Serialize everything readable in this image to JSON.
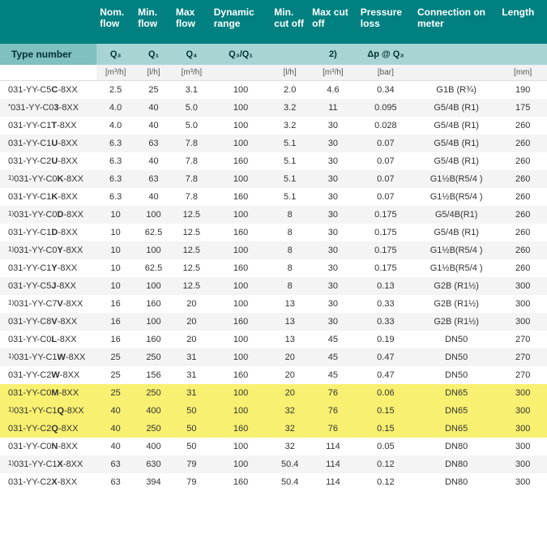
{
  "table": {
    "headers": [
      "",
      "Nom. flow",
      "Min. flow",
      "Max flow",
      "Dynamic range",
      "Min. cut off",
      "Max cut off",
      "Pressure loss",
      "Connection on meter",
      "Length"
    ],
    "type_label": "Type number",
    "symbols": [
      "Q₃",
      "Q₁",
      "Q₄",
      "Q₃/Q₁",
      "",
      "2)",
      "Δp @ Q₃",
      "",
      ""
    ],
    "units": [
      "[m³/h]",
      "[l/h]",
      "[m³/h]",
      "",
      "[l/h]",
      "[m³/h]",
      "[bar]",
      "",
      "[mm]"
    ],
    "rows": [
      {
        "pre": "",
        "type": "031-YY-C5C-8XX",
        "v": [
          "2.5",
          "25",
          "3.1",
          "100",
          "2.0",
          "4.6",
          "0.34",
          "G1B (R¾)",
          "190"
        ],
        "hl": false
      },
      {
        "pre": "*",
        "type": "031-YY-C03-8XX",
        "v": [
          "4.0",
          "40",
          "5.0",
          "100",
          "3.2",
          "11",
          "0.095",
          "G5/4B (R1)",
          "175"
        ],
        "hl": false
      },
      {
        "pre": "",
        "type": "031-YY-C1T-8XX",
        "v": [
          "4.0",
          "40",
          "5.0",
          "100",
          "3.2",
          "30",
          "0.028",
          "G5/4B (R1)",
          "260"
        ],
        "hl": false
      },
      {
        "pre": "",
        "type": "031-YY-C1U-8XX",
        "v": [
          "6.3",
          "63",
          "7.8",
          "100",
          "5.1",
          "30",
          "0.07",
          "G5/4B (R1)",
          "260"
        ],
        "hl": false
      },
      {
        "pre": "",
        "type": "031-YY-C2U-8XX",
        "v": [
          "6.3",
          "40",
          "7.8",
          "160",
          "5.1",
          "30",
          "0.07",
          "G5/4B (R1)",
          "260"
        ],
        "hl": false
      },
      {
        "pre": "1)",
        "type": "031-YY-C0K-8XX",
        "v": [
          "6.3",
          "63",
          "7.8",
          "100",
          "5.1",
          "30",
          "0.07",
          "G1½B(R5/4 )",
          "260"
        ],
        "hl": false
      },
      {
        "pre": "",
        "type": "031-YY-C1K-8XX",
        "v": [
          "6.3",
          "40",
          "7.8",
          "160",
          "5.1",
          "30",
          "0.07",
          "G1½B(R5/4 )",
          "260"
        ],
        "hl": false
      },
      {
        "pre": "1)",
        "type": "031-YY-C0D-8XX",
        "v": [
          "10",
          "100",
          "12.5",
          "100",
          "8",
          "30",
          "0.175",
          "G5/4B(R1)",
          "260"
        ],
        "hl": false
      },
      {
        "pre": "",
        "type": "031-YY-C1D-8XX",
        "v": [
          "10",
          "62.5",
          "12.5",
          "160",
          "8",
          "30",
          "0.175",
          "G5/4B (R1)",
          "260"
        ],
        "hl": false
      },
      {
        "pre": "1)",
        "type": "031-YY-C0Y-8XX",
        "v": [
          "10",
          "100",
          "12.5",
          "100",
          "8",
          "30",
          "0.175",
          "G1½B(R5/4 )",
          "260"
        ],
        "hl": false
      },
      {
        "pre": "",
        "type": "031-YY-C1Y-8XX",
        "v": [
          "10",
          "62.5",
          "12.5",
          "160",
          "8",
          "30",
          "0.175",
          "G1½B(R5/4 )",
          "260"
        ],
        "hl": false
      },
      {
        "pre": "",
        "type": "031-YY-C5J-8XX",
        "v": [
          "10",
          "100",
          "12.5",
          "100",
          "8",
          "30",
          "0.13",
          "G2B (R1½)",
          "300"
        ],
        "hl": false
      },
      {
        "pre": "1)",
        "type": "031-YY-C7V-8XX",
        "v": [
          "16",
          "160",
          "20",
          "100",
          "13",
          "30",
          "0.33",
          "G2B (R1½)",
          "300"
        ],
        "hl": false
      },
      {
        "pre": "",
        "type": "031-YY-C8V-8XX",
        "v": [
          "16",
          "100",
          "20",
          "160",
          "13",
          "30",
          "0.33",
          "G2B (R1½)",
          "300"
        ],
        "hl": false
      },
      {
        "pre": "",
        "type": "031-YY-C0L-8XX",
        "v": [
          "16",
          "160",
          "20",
          "100",
          "13",
          "45",
          "0.19",
          "DN50",
          "270"
        ],
        "hl": false
      },
      {
        "pre": "1)",
        "type": "031-YY-C1W-8XX",
        "v": [
          "25",
          "250",
          "31",
          "100",
          "20",
          "45",
          "0.47",
          "DN50",
          "270"
        ],
        "hl": false
      },
      {
        "pre": "",
        "type": "031-YY-C2W-8XX",
        "v": [
          "25",
          "156",
          "31",
          "160",
          "20",
          "45",
          "0.47",
          "DN50",
          "270"
        ],
        "hl": false
      },
      {
        "pre": "",
        "type": "031-YY-C0M-8XX",
        "v": [
          "25",
          "250",
          "31",
          "100",
          "20",
          "76",
          "0.06",
          "DN65",
          "300"
        ],
        "hl": true
      },
      {
        "pre": "1)",
        "type": "031-YY-C1Q-8XX",
        "v": [
          "40",
          "400",
          "50",
          "100",
          "32",
          "76",
          "0.15",
          "DN65",
          "300"
        ],
        "hl": true
      },
      {
        "pre": "",
        "type": "031-YY-C2Q-8XX",
        "v": [
          "40",
          "250",
          "50",
          "160",
          "32",
          "76",
          "0.15",
          "DN65",
          "300"
        ],
        "hl": true
      },
      {
        "pre": "",
        "type": "031-YY-C0N-8XX",
        "v": [
          "40",
          "400",
          "50",
          "100",
          "32",
          "114",
          "0.05",
          "DN80",
          "300"
        ],
        "hl": false
      },
      {
        "pre": "1)",
        "type": "031-YY-C1X-8XX",
        "v": [
          "63",
          "630",
          "79",
          "100",
          "50.4",
          "114",
          "0.12",
          "DN80",
          "300"
        ],
        "hl": false
      },
      {
        "pre": "",
        "type": "031-YY-C2X-8XX",
        "v": [
          "63",
          "394",
          "79",
          "160",
          "50.4",
          "114",
          "0.12",
          "DN80",
          "300"
        ],
        "hl": false
      }
    ]
  }
}
